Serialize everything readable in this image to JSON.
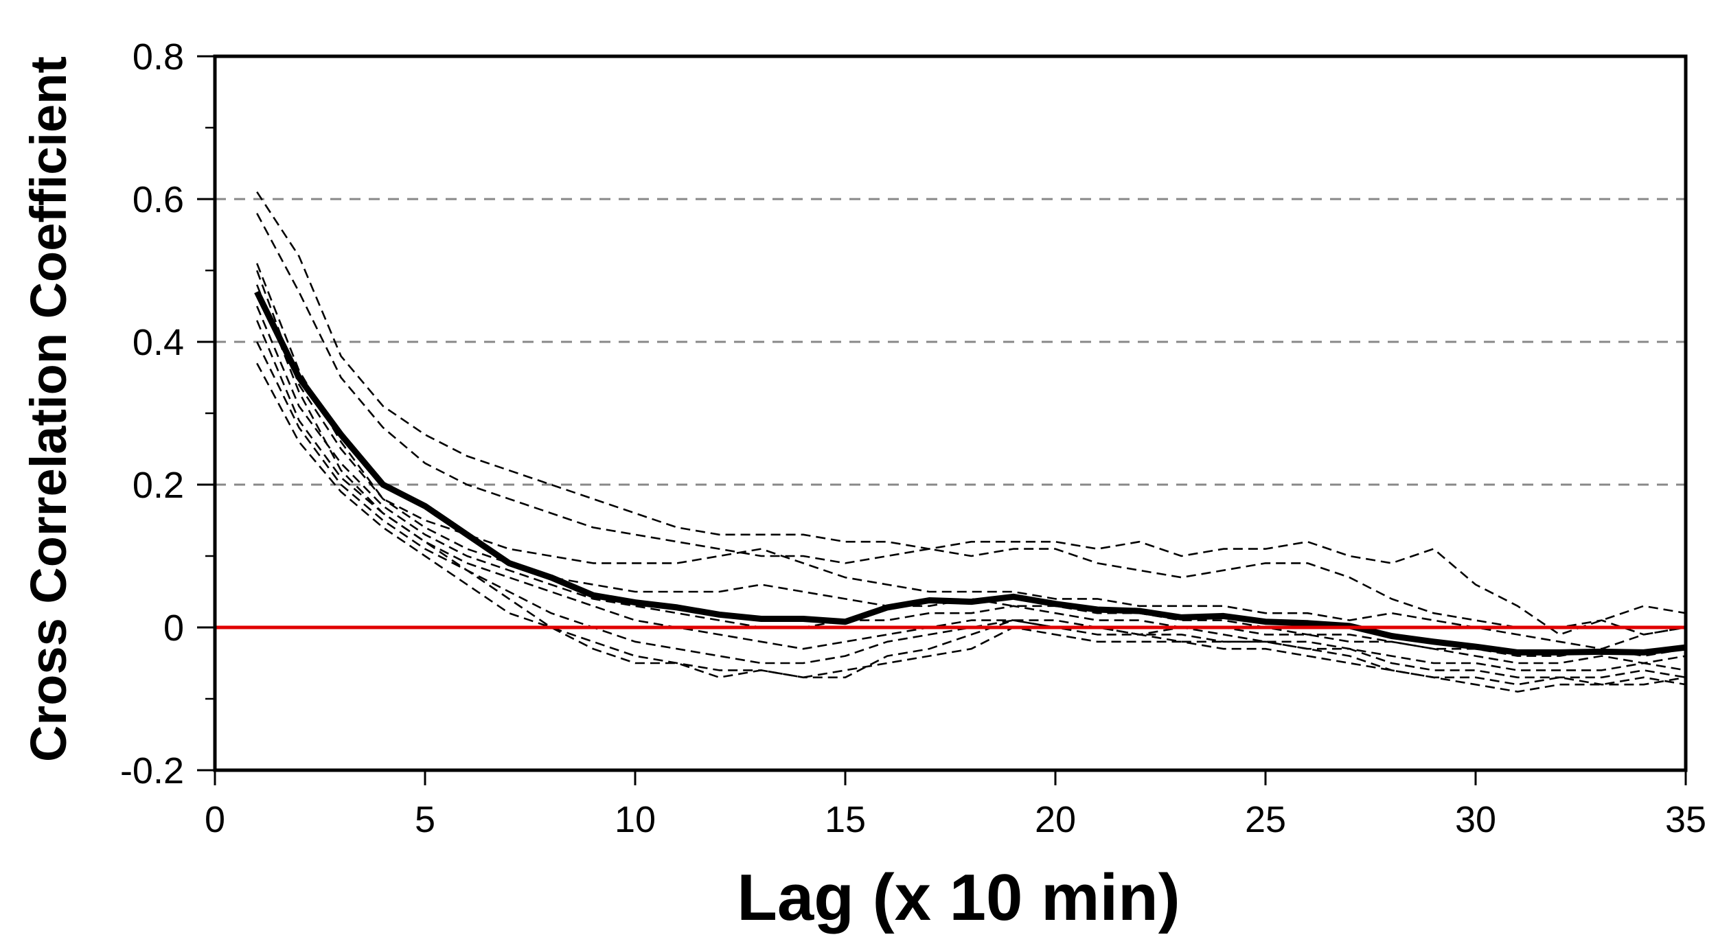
{
  "chart_data": {
    "type": "line",
    "title": "",
    "xlabel": "Lag (x 10 min)",
    "ylabel": "Cross Correlation Coefficient",
    "xlim": [
      0,
      35
    ],
    "ylim": [
      -0.2,
      0.8
    ],
    "x_ticks": [
      0,
      5,
      10,
      15,
      20,
      25,
      30,
      35
    ],
    "x_tick_labels": [
      "0",
      "5",
      "10",
      "15",
      "20",
      "25",
      "30",
      "35"
    ],
    "y_ticks": [
      -0.2,
      0,
      0.2,
      0.4,
      0.6,
      0.8
    ],
    "y_tick_labels": [
      "-0.2",
      "0",
      "0.2",
      "0.4",
      "0.6",
      "0.8"
    ],
    "y_minor_ticks": [
      -0.1,
      0.1,
      0.3,
      0.5,
      0.7
    ],
    "grid": {
      "y_dashed_at": [
        0.2,
        0.4,
        0.6
      ]
    },
    "zero_line": {
      "y": 0,
      "color": "#e00000"
    },
    "legend": "none",
    "colors": {
      "mean": "#000000",
      "individual": "#000000",
      "grid": "#888888",
      "zero": "#e00000"
    },
    "x": [
      1,
      2,
      3,
      4,
      5,
      6,
      7,
      8,
      9,
      10,
      11,
      12,
      13,
      14,
      15,
      16,
      17,
      18,
      19,
      20,
      21,
      22,
      23,
      24,
      25,
      26,
      27,
      28,
      29,
      30,
      31,
      32,
      33,
      34,
      35
    ],
    "series": [
      {
        "style": "solid-thick",
        "values": [
          0.47,
          0.35,
          0.27,
          0.2,
          0.17,
          0.13,
          0.09,
          0.07,
          0.045,
          0.035,
          0.028,
          0.018,
          0.012,
          0.012,
          0.008,
          0.028,
          0.038,
          0.036,
          0.043,
          0.033,
          0.025,
          0.023,
          0.014,
          0.016,
          0.008,
          0.006,
          0.002,
          -0.012,
          -0.02,
          -0.027,
          -0.035,
          -0.035,
          -0.034,
          -0.035,
          -0.028
        ]
      },
      {
        "style": "dashed",
        "values": [
          0.61,
          0.52,
          0.38,
          0.31,
          0.27,
          0.24,
          0.22,
          0.2,
          0.18,
          0.16,
          0.14,
          0.13,
          0.13,
          0.13,
          0.12,
          0.12,
          0.11,
          0.12,
          0.12,
          0.12,
          0.11,
          0.12,
          0.1,
          0.11,
          0.11,
          0.12,
          0.1,
          0.09,
          0.11,
          0.06,
          0.03,
          -0.01,
          0.01,
          0.03,
          0.02
        ]
      },
      {
        "style": "dashed",
        "values": [
          0.58,
          0.47,
          0.35,
          0.28,
          0.23,
          0.2,
          0.18,
          0.16,
          0.14,
          0.13,
          0.12,
          0.11,
          0.1,
          0.1,
          0.09,
          0.1,
          0.11,
          0.1,
          0.11,
          0.11,
          0.09,
          0.08,
          0.07,
          0.08,
          0.09,
          0.09,
          0.07,
          0.04,
          0.02,
          0.01,
          0.0,
          0.0,
          0.01,
          -0.01,
          0.0
        ]
      },
      {
        "style": "dashed",
        "values": [
          0.51,
          0.36,
          0.26,
          0.18,
          0.15,
          0.13,
          0.11,
          0.1,
          0.09,
          0.09,
          0.09,
          0.1,
          0.11,
          0.09,
          0.07,
          0.06,
          0.05,
          0.05,
          0.05,
          0.04,
          0.04,
          0.03,
          0.03,
          0.03,
          0.02,
          0.02,
          0.01,
          0.02,
          0.01,
          0.0,
          -0.01,
          -0.02,
          -0.03,
          -0.01,
          0.0
        ]
      },
      {
        "style": "dashed",
        "values": [
          0.5,
          0.34,
          0.25,
          0.18,
          0.14,
          0.11,
          0.09,
          0.07,
          0.06,
          0.05,
          0.05,
          0.05,
          0.06,
          0.05,
          0.04,
          0.03,
          0.03,
          0.04,
          0.03,
          0.03,
          0.02,
          0.02,
          0.01,
          0.01,
          0.0,
          -0.01,
          -0.01,
          -0.02,
          -0.03,
          -0.03,
          -0.04,
          -0.04,
          -0.03,
          -0.04,
          -0.03
        ]
      },
      {
        "style": "dashed",
        "values": [
          0.45,
          0.31,
          0.23,
          0.17,
          0.13,
          0.1,
          0.08,
          0.06,
          0.04,
          0.03,
          0.02,
          0.01,
          0.0,
          0.0,
          0.01,
          0.01,
          0.02,
          0.02,
          0.03,
          0.02,
          0.01,
          0.01,
          0.0,
          0.0,
          -0.01,
          -0.01,
          -0.02,
          -0.02,
          -0.03,
          -0.04,
          -0.05,
          -0.05,
          -0.04,
          -0.05,
          -0.04
        ]
      },
      {
        "style": "dashed",
        "values": [
          0.43,
          0.29,
          0.21,
          0.16,
          0.12,
          0.09,
          0.07,
          0.05,
          0.03,
          0.01,
          0.0,
          -0.01,
          -0.02,
          -0.03,
          -0.02,
          -0.01,
          0.0,
          0.01,
          0.01,
          0.0,
          0.0,
          -0.01,
          -0.01,
          -0.02,
          -0.02,
          -0.02,
          -0.03,
          -0.04,
          -0.05,
          -0.05,
          -0.06,
          -0.06,
          -0.06,
          -0.05,
          -0.06
        ]
      },
      {
        "style": "dashed",
        "values": [
          0.4,
          0.28,
          0.2,
          0.15,
          0.11,
          0.08,
          0.05,
          0.02,
          0.0,
          -0.02,
          -0.03,
          -0.04,
          -0.05,
          -0.05,
          -0.04,
          -0.02,
          -0.01,
          0.0,
          0.01,
          0.0,
          -0.01,
          -0.01,
          -0.02,
          -0.02,
          -0.02,
          -0.03,
          -0.03,
          -0.05,
          -0.06,
          -0.06,
          -0.07,
          -0.07,
          -0.07,
          -0.06,
          -0.07
        ]
      },
      {
        "style": "dashed",
        "values": [
          0.37,
          0.26,
          0.19,
          0.14,
          0.1,
          0.06,
          0.02,
          0.0,
          -0.02,
          -0.04,
          -0.05,
          -0.06,
          -0.06,
          -0.07,
          -0.06,
          -0.05,
          -0.04,
          -0.03,
          0.0,
          -0.01,
          -0.02,
          -0.02,
          -0.02,
          -0.03,
          -0.03,
          -0.04,
          -0.05,
          -0.06,
          -0.07,
          -0.08,
          -0.09,
          -0.08,
          -0.08,
          -0.07,
          -0.08
        ]
      },
      {
        "style": "dashed",
        "values": [
          0.48,
          0.33,
          0.22,
          0.16,
          0.12,
          0.08,
          0.04,
          0.0,
          -0.03,
          -0.05,
          -0.05,
          -0.07,
          -0.06,
          -0.07,
          -0.07,
          -0.04,
          -0.03,
          -0.01,
          0.01,
          0.01,
          0.0,
          -0.01,
          0.0,
          -0.01,
          -0.02,
          -0.03,
          -0.04,
          -0.06,
          -0.07,
          -0.07,
          -0.08,
          -0.07,
          -0.08,
          -0.08,
          -0.07
        ]
      }
    ]
  }
}
